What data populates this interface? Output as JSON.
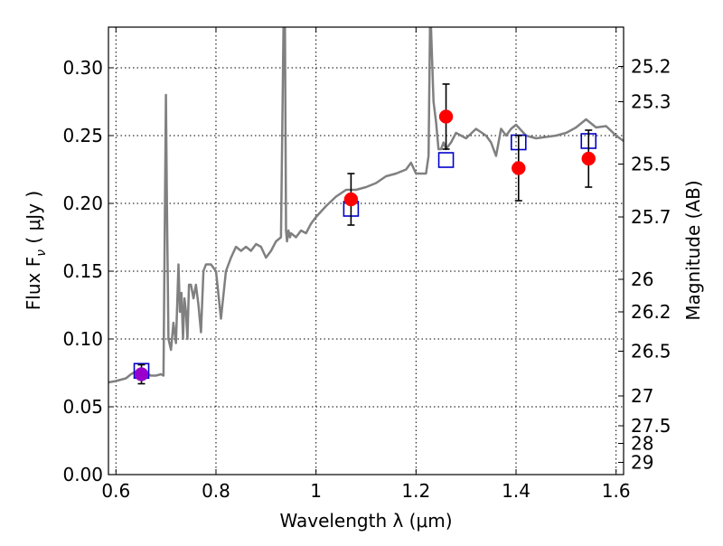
{
  "chart_data": {
    "type": "scatter",
    "xlabel": "Wavelength  λ (μm)",
    "ylabel": "Flux  F",
    "ylabel_sub": "ν",
    "ylabel_unit": " ( μJy )",
    "y2label": "Magnitude (AB)",
    "xlim": [
      0.585,
      1.615
    ],
    "ylim": [
      0.0,
      0.33
    ],
    "grid": true,
    "x_ticks": [
      0.6,
      0.8,
      1.0,
      1.2,
      1.4,
      1.6
    ],
    "x_tick_labels": [
      "0.6",
      "0.8",
      "1",
      "1.2",
      "1.4",
      "1.6"
    ],
    "y_ticks": [
      0.0,
      0.05,
      0.1,
      0.15,
      0.2,
      0.25,
      0.3
    ],
    "y_tick_labels": [
      "0.00",
      "0.05",
      "0.10",
      "0.15",
      "0.20",
      "0.25",
      "0.30"
    ],
    "y2_ticks": [
      {
        "label": "25.2",
        "flux": 0.301
      },
      {
        "label": "25.3",
        "flux": 0.275
      },
      {
        "label": "25.5",
        "flux": 0.229
      },
      {
        "label": "25.7",
        "flux": 0.19
      },
      {
        "label": "26",
        "flux": 0.144
      },
      {
        "label": "26.2",
        "flux": 0.12
      },
      {
        "label": "26.5",
        "flux": 0.091
      },
      {
        "label": "27",
        "flux": 0.058
      },
      {
        "label": "27.5",
        "flux": 0.036
      },
      {
        "label": "28",
        "flux": 0.023
      },
      {
        "label": "29",
        "flux": 0.009
      }
    ],
    "series": [
      {
        "kind": "line",
        "color": "#808080",
        "x": [
          0.585,
          0.6,
          0.62,
          0.63,
          0.64,
          0.65,
          0.66,
          0.67,
          0.68,
          0.69,
          0.695,
          0.7,
          0.702,
          0.705,
          0.71,
          0.715,
          0.72,
          0.725,
          0.728,
          0.731,
          0.734,
          0.737,
          0.74,
          0.743,
          0.746,
          0.75,
          0.755,
          0.76,
          0.765,
          0.77,
          0.775,
          0.78,
          0.79,
          0.8,
          0.81,
          0.82,
          0.825,
          0.83,
          0.84,
          0.85,
          0.86,
          0.87,
          0.88,
          0.89,
          0.9,
          0.91,
          0.92,
          0.93,
          0.935,
          0.938,
          0.94,
          0.942,
          0.945,
          0.948,
          0.95,
          0.96,
          0.97,
          0.98,
          0.99,
          1.0,
          1.02,
          1.04,
          1.06,
          1.08,
          1.1,
          1.12,
          1.14,
          1.16,
          1.18,
          1.19,
          1.2,
          1.22,
          1.225,
          1.228,
          1.23,
          1.235,
          1.24,
          1.245,
          1.25,
          1.255,
          1.26,
          1.27,
          1.28,
          1.3,
          1.32,
          1.34,
          1.35,
          1.36,
          1.37,
          1.38,
          1.39,
          1.4,
          1.42,
          1.44,
          1.46,
          1.48,
          1.5,
          1.52,
          1.54,
          1.56,
          1.58,
          1.6,
          1.615
        ],
        "y": [
          0.068,
          0.069,
          0.071,
          0.074,
          0.076,
          0.074,
          0.075,
          0.073,
          0.073,
          0.074,
          0.073,
          0.28,
          0.2,
          0.1,
          0.092,
          0.112,
          0.097,
          0.155,
          0.12,
          0.134,
          0.1,
          0.13,
          0.12,
          0.1,
          0.14,
          0.14,
          0.13,
          0.14,
          0.125,
          0.105,
          0.15,
          0.155,
          0.155,
          0.15,
          0.115,
          0.15,
          0.155,
          0.16,
          0.168,
          0.165,
          0.168,
          0.165,
          0.17,
          0.168,
          0.16,
          0.165,
          0.172,
          0.175,
          0.33,
          0.33,
          0.18,
          0.172,
          0.18,
          0.175,
          0.178,
          0.175,
          0.18,
          0.178,
          0.185,
          0.19,
          0.198,
          0.205,
          0.21,
          0.21,
          0.212,
          0.215,
          0.22,
          0.222,
          0.225,
          0.23,
          0.222,
          0.222,
          0.235,
          0.33,
          0.33,
          0.275,
          0.26,
          0.24,
          0.24,
          0.245,
          0.24,
          0.245,
          0.252,
          0.248,
          0.255,
          0.25,
          0.245,
          0.235,
          0.255,
          0.25,
          0.255,
          0.258,
          0.25,
          0.248,
          0.249,
          0.25,
          0.252,
          0.256,
          0.262,
          0.256,
          0.257,
          0.25,
          0.246
        ]
      },
      {
        "kind": "open-square",
        "color": "#0000cc",
        "x": [
          0.651,
          1.07,
          1.26,
          1.405,
          1.545
        ],
        "y": [
          0.0765,
          0.196,
          0.232,
          0.245,
          0.246
        ]
      },
      {
        "kind": "filled-circle",
        "color": "#ff0000",
        "x": [
          1.07,
          1.26,
          1.405,
          1.545
        ],
        "y": [
          0.203,
          0.264,
          0.226,
          0.233
        ],
        "yerr": [
          0.019,
          0.024,
          0.024,
          0.021
        ]
      },
      {
        "kind": "filled-circle",
        "color": "#9900cc",
        "x": [
          0.651
        ],
        "y": [
          0.074
        ],
        "yerr": [
          0.007
        ]
      }
    ]
  }
}
